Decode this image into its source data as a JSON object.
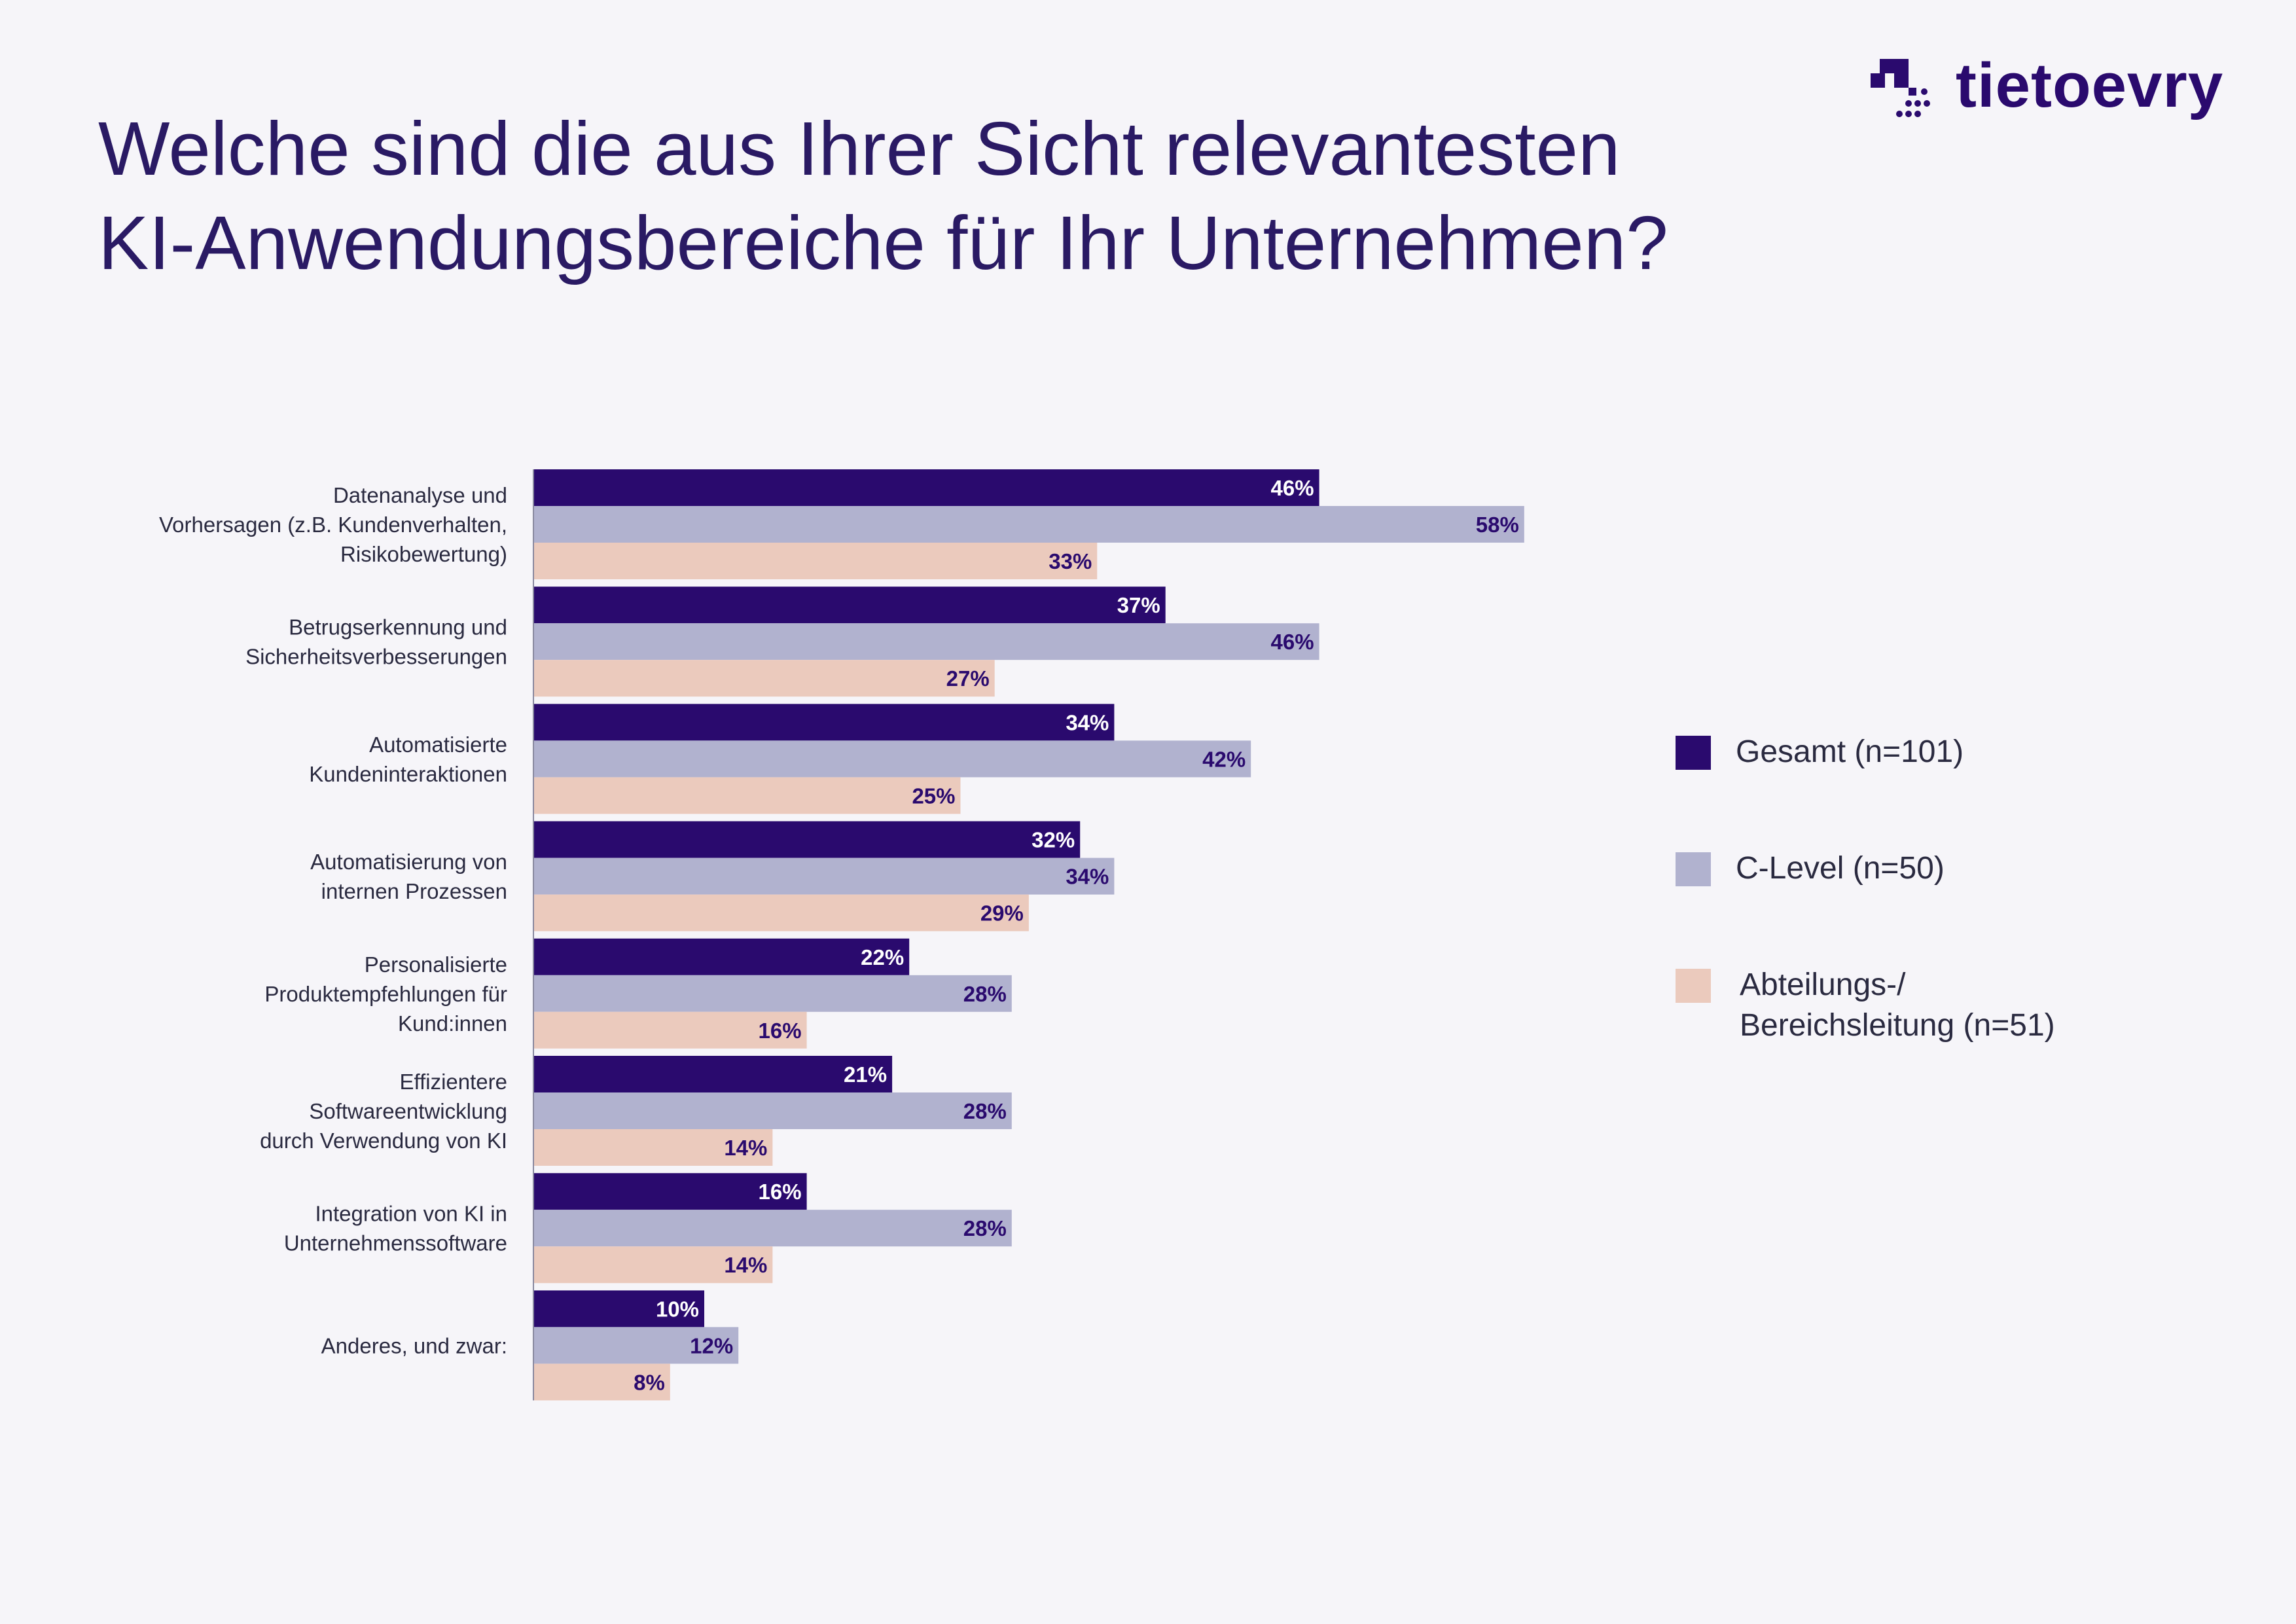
{
  "title_lines": [
    "Welche sind die aus Ihrer Sicht relevantesten",
    "KI-Anwendungsbereiche für Ihr Unternehmen?"
  ],
  "logo": {
    "text": "tietoevry",
    "color": "#2a0a6e"
  },
  "colors": {
    "background": "#f6f5f9",
    "title": "#2a1a64",
    "gesamt": "#2a0a6e",
    "clevel": "#b1b2cf",
    "abteilung": "#ebcabd",
    "value_on_dark": "#ffffff",
    "value_on_light": "#2a0a6e"
  },
  "legend": [
    {
      "label_lines": [
        "Gesamt (n=101)"
      ],
      "color": "#2a0a6e"
    },
    {
      "label_lines": [
        "C-Level (n=50)"
      ],
      "color": "#b1b2cf"
    },
    {
      "label_lines": [
        "Abteilungs-/",
        "Bereichsleitung (n=51)"
      ],
      "color": "#ebcabd"
    }
  ],
  "chart_data": {
    "type": "bar",
    "orientation": "horizontal",
    "title": "Welche sind die aus Ihrer Sicht relevantesten KI-Anwendungsbereiche für Ihr Unternehmen?",
    "unit": "%",
    "xlim": [
      0,
      60
    ],
    "grid": false,
    "legend_position": "right",
    "categories": [
      [
        "Datenanalyse und",
        "Vorhersagen (z.B. Kundenverhalten,",
        "Risikobewertung)"
      ],
      [
        "Betrugserkennung und",
        "Sicherheitsverbesserungen"
      ],
      [
        "Automatisierte",
        "Kundeninteraktionen"
      ],
      [
        "Automatisierung von",
        "internen Prozessen"
      ],
      [
        "Personalisierte",
        "Produktempfehlungen für",
        "Kund:innen"
      ],
      [
        "Effizientere",
        "Softwareentwicklung",
        "durch Verwendung von KI"
      ],
      [
        "Integration von KI in",
        "Unternehmenssoftware"
      ],
      [
        "Anderes, und zwar:"
      ]
    ],
    "series": [
      {
        "name": "Gesamt (n=101)",
        "values": [
          46,
          37,
          34,
          32,
          22,
          21,
          16,
          10
        ]
      },
      {
        "name": "C-Level (n=50)",
        "values": [
          58,
          46,
          42,
          34,
          28,
          28,
          28,
          12
        ]
      },
      {
        "name": "Abteilungs-/Bereichsleitung (n=51)",
        "values": [
          33,
          27,
          25,
          29,
          16,
          14,
          14,
          8
        ]
      }
    ]
  }
}
